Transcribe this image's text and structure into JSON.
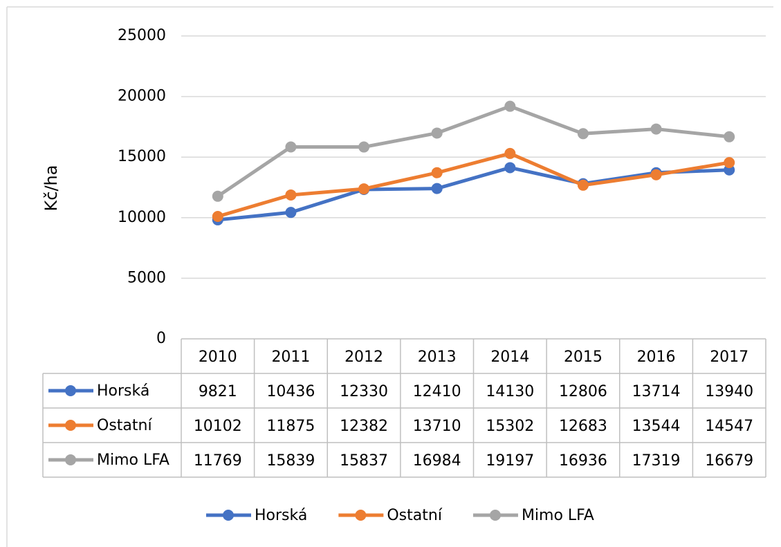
{
  "chart_data": {
    "type": "line",
    "y_label": "Kč/ha",
    "categories": [
      "2010",
      "2011",
      "2012",
      "2013",
      "2014",
      "2015",
      "2016",
      "2017"
    ],
    "series": [
      {
        "name": "Horská",
        "color": "#4472c4",
        "values": [
          9821,
          10436,
          12330,
          12410,
          14130,
          12806,
          13714,
          13940
        ]
      },
      {
        "name": "Ostatní",
        "color": "#ed7d31",
        "values": [
          10102,
          11875,
          12382,
          13710,
          15302,
          12683,
          13544,
          14547
        ]
      },
      {
        "name": "Mimo LFA",
        "color": "#a5a5a5",
        "values": [
          11769,
          15839,
          15837,
          16984,
          19197,
          16936,
          17319,
          16679
        ]
      }
    ],
    "ylim": [
      0,
      25000
    ],
    "yticks": [
      0,
      5000,
      10000,
      15000,
      20000,
      25000
    ],
    "grid": true,
    "legend": "bottom"
  }
}
